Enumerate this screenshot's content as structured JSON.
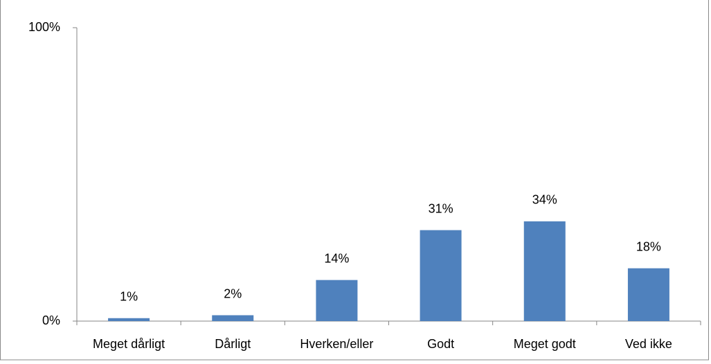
{
  "chart_data": {
    "type": "bar",
    "categories": [
      "Meget dårligt",
      "Dårligt",
      "Hverken/eller",
      "Godt",
      "Meget godt",
      "Ved ikke"
    ],
    "values": [
      1,
      2,
      14,
      31,
      34,
      18
    ],
    "value_labels": [
      "1%",
      "2%",
      "14%",
      "31%",
      "34%",
      "18%"
    ],
    "color": "#4f81bd",
    "ylim": [
      0,
      100
    ],
    "yticks": [
      {
        "value": 0,
        "label": "0%"
      },
      {
        "value": 100,
        "label": "100%"
      }
    ],
    "grid": false
  }
}
